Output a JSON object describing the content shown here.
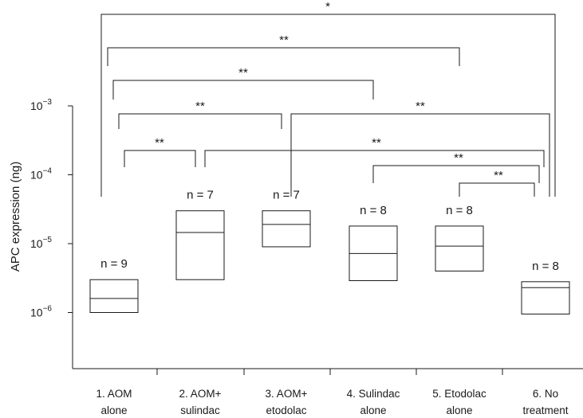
{
  "chart_data": {
    "type": "box",
    "ylabel": "APC expression (ng)",
    "yscale": "log",
    "ylim_log10": [
      -7.2,
      -2.55
    ],
    "y_ticks": [
      {
        "exp": -6,
        "label": "10",
        "sup": "−6"
      },
      {
        "exp": -5,
        "label": "10",
        "sup": "−5"
      },
      {
        "exp": -4,
        "label": "10",
        "sup": "−4"
      },
      {
        "exp": -3,
        "label": "10",
        "sup": "−3"
      }
    ],
    "groups": [
      {
        "label_line1": "1. AOM",
        "label_line2": "alone",
        "n_label": "n = 9",
        "low": 1e-06,
        "median": 1.6e-06,
        "high": 3e-06
      },
      {
        "label_line1": "2. AOM+",
        "label_line2": "sulindac",
        "n_label": "n = 7",
        "low": 3e-06,
        "median": 1.45e-05,
        "high": 3e-05
      },
      {
        "label_line1": "3. AOM+",
        "label_line2": "etodolac",
        "n_label": "n = 7",
        "low": 9e-06,
        "median": 1.9e-05,
        "high": 3e-05
      },
      {
        "label_line1": "4. Sulindac",
        "label_line2": "alone",
        "n_label": "n = 8",
        "low": 2.9e-06,
        "median": 7.2e-06,
        "high": 1.8e-05
      },
      {
        "label_line1": "5. Etodolac",
        "label_line2": "alone",
        "n_label": "n = 8",
        "low": 4e-06,
        "median": 9.2e-06,
        "high": 1.8e-05
      },
      {
        "label_line1": "6. No",
        "label_line2": "treatment",
        "n_label": "n = 8",
        "low": 9.5e-07,
        "median": 2.3e-06,
        "high": 2.8e-06
      }
    ],
    "comparisons": [
      {
        "from": 1,
        "to": 6,
        "label": "*"
      },
      {
        "from": 1,
        "to": 5,
        "label": "**"
      },
      {
        "from": 1,
        "to": 4,
        "label": "**"
      },
      {
        "from": 1,
        "to": 3,
        "label": "**"
      },
      {
        "from": 3,
        "to": 6,
        "label": "**"
      },
      {
        "from": 1,
        "to": 2,
        "label": "**"
      },
      {
        "from": 2,
        "to": 6,
        "label": "**"
      },
      {
        "from": 4,
        "to": 6,
        "label": "**"
      },
      {
        "from": 5,
        "to": 6,
        "label": "**"
      }
    ]
  }
}
